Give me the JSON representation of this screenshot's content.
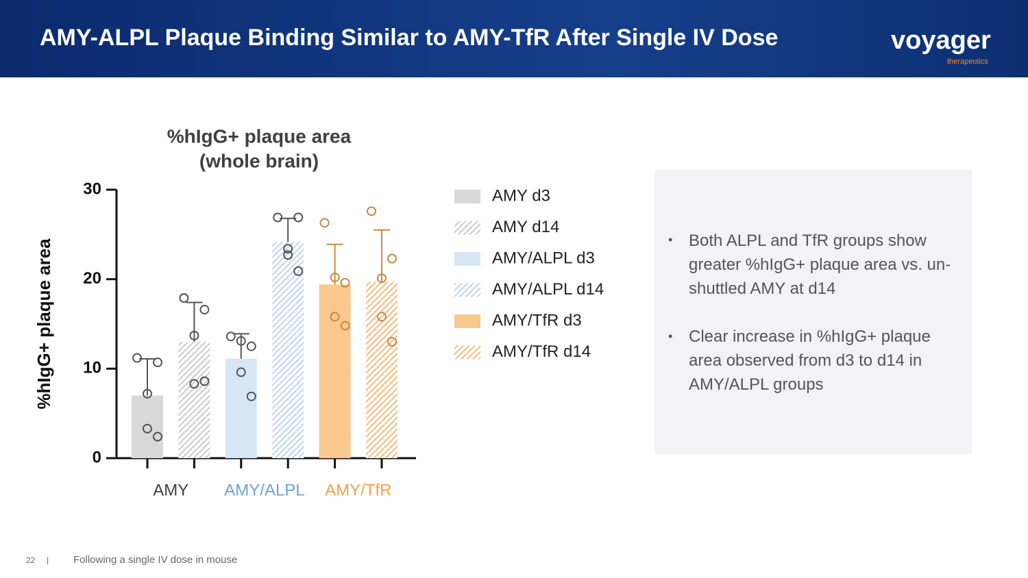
{
  "header": {
    "title": "AMY-ALPL Plaque Binding Similar to AMY-TfR After Single IV Dose",
    "logo": "voyager",
    "logo_sub": "therapeutics"
  },
  "chart_data": {
    "type": "bar",
    "title": [
      "%hIgG+ plaque area",
      "(whole brain)"
    ],
    "y_label": "%hIgG+ plaque area",
    "categories": [
      "AMY",
      "AMY/ALPL",
      "AMY/TfR"
    ],
    "category_colors": [
      "#404040",
      "#6fa0d8",
      "#f0a24a"
    ],
    "ylim": [
      0,
      30
    ],
    "yticks": [
      0,
      10,
      20,
      30
    ],
    "series": [
      {
        "name": "AMY d3",
        "color": "#d9d9d9",
        "hatch": false,
        "point_color": "#555555",
        "values": [
          7.0,
          null,
          null
        ],
        "errors": [
          4.1,
          null,
          null
        ],
        "points": [
          [
            11.2,
            10.7,
            7.2,
            3.3,
            2.4
          ],
          null,
          null
        ]
      },
      {
        "name": "AMY d14",
        "color": "#c4c4c4",
        "hatch": true,
        "point_color": "#555555",
        "values": [
          13.0,
          null,
          null
        ],
        "errors": [
          4.4,
          null,
          null
        ],
        "points": [
          [
            17.9,
            16.6,
            13.7,
            8.3,
            8.6
          ],
          null,
          null
        ]
      },
      {
        "name": "AMY/ALPL d3",
        "color": "#d6e6f5",
        "hatch": false,
        "point_color": "#555555",
        "values": [
          null,
          11.1,
          null
        ],
        "errors": [
          null,
          2.8,
          null
        ],
        "points": [
          null,
          [
            13.6,
            12.5,
            13.1,
            9.6,
            6.9
          ],
          null
        ]
      },
      {
        "name": "AMY/ALPL d14",
        "color": "#b4cfee",
        "hatch": true,
        "point_color": "#555555",
        "values": [
          null,
          24.2,
          null
        ],
        "errors": [
          null,
          2.6,
          null
        ],
        "points": [
          null,
          [
            26.9,
            26.9,
            23.4,
            22.7,
            20.9
          ],
          null
        ]
      },
      {
        "name": "AMY/TfR d3",
        "color": "#f9c88e",
        "hatch": false,
        "point_color": "#c98a3f",
        "values": [
          null,
          null,
          19.4
        ],
        "errors": [
          null,
          null,
          4.5
        ],
        "points": [
          null,
          null,
          [
            26.3,
            19.6,
            20.2,
            15.8,
            14.8
          ]
        ]
      },
      {
        "name": "AMY/TfR d14",
        "color": "#f5b36b",
        "hatch": true,
        "point_color": "#c98a3f",
        "values": [
          null,
          null,
          19.7
        ],
        "errors": [
          null,
          null,
          5.8
        ],
        "points": [
          null,
          null,
          [
            27.6,
            22.3,
            20.1,
            15.8,
            13.0
          ]
        ]
      }
    ]
  },
  "bullets": [
    "Both ALPL and TfR groups show greater %hIgG+ plaque area vs. un-shuttled AMY at d14",
    "Clear increase in %hIgG+ plaque area observed from d3 to d14 in AMY/ALPL groups"
  ],
  "footer": {
    "page": "22",
    "note": "Following a single IV dose in mouse"
  }
}
